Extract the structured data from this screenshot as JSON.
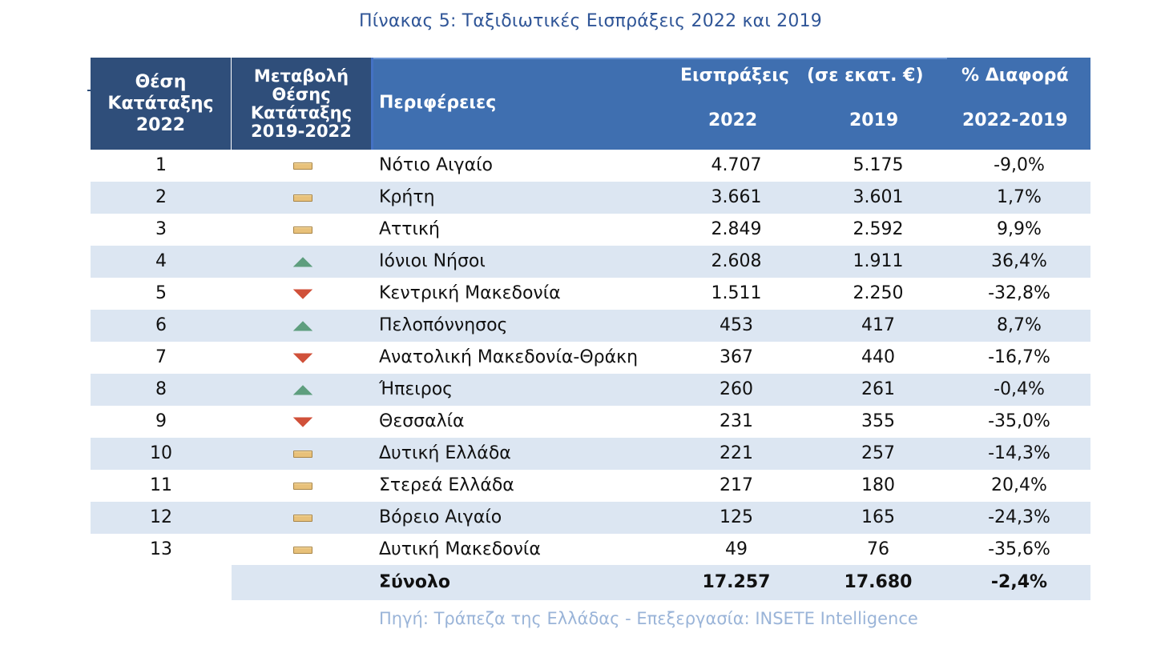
{
  "title": "Πίνακας 5: Ταξιδιωτικές Εισπράξεις 2022 και 2019",
  "header": {
    "rank_line1": "Θέση",
    "rank_line2": "Κατάταξης",
    "rank_line3": "2022",
    "change_line1": "Μεταβολή",
    "change_line2": "Θέσης",
    "change_line3": "Κατάταξης",
    "change_line4": "2019-2022",
    "regions": "Περιφέρειες",
    "receipts": "Εισπράξεις",
    "unit": "(σε εκατ. €)",
    "diff": "% Διαφορά",
    "year_2022": "2022",
    "year_2019": "2019",
    "diff_period": "2022-2019"
  },
  "rows": [
    {
      "rank": "1",
      "change": "flat",
      "region": "Νότιο Αιγαίο",
      "v2022": "4.707",
      "v2019": "5.175",
      "diff": "-9,0%"
    },
    {
      "rank": "2",
      "change": "flat",
      "region": "Κρήτη",
      "v2022": "3.661",
      "v2019": "3.601",
      "diff": "1,7%"
    },
    {
      "rank": "3",
      "change": "flat",
      "region": "Αττική",
      "v2022": "2.849",
      "v2019": "2.592",
      "diff": "9,9%"
    },
    {
      "rank": "4",
      "change": "up",
      "region": "Ιόνιοι Νήσοι",
      "v2022": "2.608",
      "v2019": "1.911",
      "diff": "36,4%"
    },
    {
      "rank": "5",
      "change": "down",
      "region": "Κεντρική Μακεδονία",
      "v2022": "1.511",
      "v2019": "2.250",
      "diff": "-32,8%"
    },
    {
      "rank": "6",
      "change": "up",
      "region": "Πελοπόννησος",
      "v2022": "453",
      "v2019": "417",
      "diff": "8,7%"
    },
    {
      "rank": "7",
      "change": "down",
      "region": "Ανατολική Μακεδονία-Θράκη",
      "v2022": "367",
      "v2019": "440",
      "diff": "-16,7%"
    },
    {
      "rank": "8",
      "change": "up",
      "region": "Ήπειρος",
      "v2022": "260",
      "v2019": "261",
      "diff": "-0,4%"
    },
    {
      "rank": "9",
      "change": "down",
      "region": "Θεσσαλία",
      "v2022": "231",
      "v2019": "355",
      "diff": "-35,0%"
    },
    {
      "rank": "10",
      "change": "flat",
      "region": "Δυτική Ελλάδα",
      "v2022": "221",
      "v2019": "257",
      "diff": "-14,3%"
    },
    {
      "rank": "11",
      "change": "flat",
      "region": "Στερεά Ελλάδα",
      "v2022": "217",
      "v2019": "180",
      "diff": "20,4%"
    },
    {
      "rank": "12",
      "change": "flat",
      "region": "Βόρειο Αιγαίο",
      "v2022": "125",
      "v2019": "165",
      "diff": "-24,3%"
    },
    {
      "rank": "13",
      "change": "flat",
      "region": "Δυτική Μακεδονία",
      "v2022": "49",
      "v2019": "76",
      "diff": "-35,6%"
    }
  ],
  "total": {
    "label": "Σύνολο",
    "v2022": "17.257",
    "v2019": "17.680",
    "diff": "-2,4%"
  },
  "source": "Πηγή: Τράπεζα της Ελλάδας - Επεξεργασία: INSETE Intelligence",
  "colors": {
    "header_dark": "#2f4e7a",
    "header_blue": "#3f6fb0",
    "row_alt": "#dce6f2",
    "up": "#5e9e7e",
    "down": "#d0513a",
    "flat": "#e8c17a"
  }
}
